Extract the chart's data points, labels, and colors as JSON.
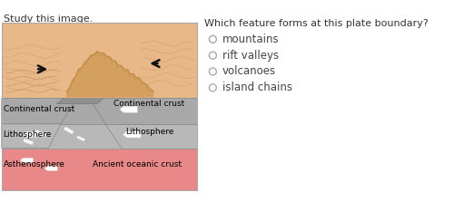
{
  "title_left": "Study this image.",
  "title_right": "Which feature forms at this plate boundary?",
  "options": [
    "mountains",
    "rift valleys",
    "volcanoes",
    "island chains"
  ],
  "bg_color": "#ffffff",
  "labels": {
    "continental_crust_left": "Continental crust",
    "continental_crust_right": "Continental crust",
    "lithosphere_left": "Lithosphere",
    "lithosphere_right": "Lithosphere",
    "asthenosphere": "Asthenosphere",
    "ancient_oceanic": "Ancient oceanic crust"
  },
  "colors": {
    "surface_tan": "#e8b888",
    "surface_tan2": "#dba878",
    "continental_grey": "#a8a8a8",
    "lithosphere_grey": "#b8b8b8",
    "asthenosphere_pink": "#e88888",
    "ancient_pink": "#e88888",
    "deep_slab": "#909090",
    "mountain_tan": "#d4a060",
    "mountain_dark": "#c08840",
    "outline": "#888888",
    "white_arrow": "#ffffff",
    "black_arrow": "#111111",
    "label_color": "#000000",
    "title_color": "#333333",
    "option_color": "#444444",
    "radio_color": "#aaaaaa"
  },
  "label_fontsize": 6.5,
  "title_fontsize": 8,
  "option_fontsize": 8.5
}
